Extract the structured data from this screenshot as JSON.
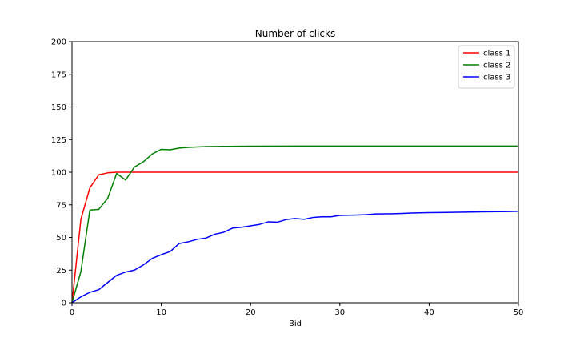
{
  "chart_data": {
    "type": "line",
    "title": "Number of clicks",
    "xlabel": "Bid",
    "ylabel": "",
    "xlim": [
      0,
      50
    ],
    "ylim": [
      0,
      200
    ],
    "xticks": [
      0,
      10,
      20,
      30,
      40,
      50
    ],
    "yticks": [
      0,
      25,
      50,
      75,
      100,
      125,
      150,
      175,
      200
    ],
    "grid": false,
    "legend_position": "top-right",
    "series": [
      {
        "name": "class 1",
        "color": "#ff0000",
        "points": [
          [
            0,
            0
          ],
          [
            1,
            64
          ],
          [
            2,
            88
          ],
          [
            3,
            98
          ],
          [
            4,
            99.5
          ],
          [
            5,
            100
          ],
          [
            6,
            100
          ],
          [
            8,
            100
          ],
          [
            10,
            100
          ],
          [
            15,
            100
          ],
          [
            20,
            100
          ],
          [
            25,
            100
          ],
          [
            30,
            100
          ],
          [
            35,
            100
          ],
          [
            40,
            100
          ],
          [
            45,
            100
          ],
          [
            50,
            100
          ]
        ]
      },
      {
        "name": "class 2",
        "color": "#008000",
        "points": [
          [
            0,
            0
          ],
          [
            1,
            24
          ],
          [
            2,
            71
          ],
          [
            3,
            71.5
          ],
          [
            4,
            80
          ],
          [
            5,
            99
          ],
          [
            6,
            94
          ],
          [
            7,
            104
          ],
          [
            8,
            108
          ],
          [
            9,
            114
          ],
          [
            10,
            117.5
          ],
          [
            11,
            117.2
          ],
          [
            12,
            118.5
          ],
          [
            13,
            119
          ],
          [
            14,
            119.3
          ],
          [
            15,
            119.6
          ],
          [
            17,
            119.8
          ],
          [
            20,
            119.9
          ],
          [
            25,
            120
          ],
          [
            30,
            120
          ],
          [
            35,
            120
          ],
          [
            40,
            120
          ],
          [
            45,
            120
          ],
          [
            50,
            120
          ]
        ]
      },
      {
        "name": "class 3",
        "color": "#0000ff",
        "points": [
          [
            0,
            0
          ],
          [
            1,
            4.5
          ],
          [
            2,
            8
          ],
          [
            3,
            10
          ],
          [
            4,
            15.5
          ],
          [
            5,
            21
          ],
          [
            6,
            23.5
          ],
          [
            7,
            25
          ],
          [
            8,
            29
          ],
          [
            9,
            34
          ],
          [
            10,
            36.8
          ],
          [
            11,
            39.2
          ],
          [
            12,
            45.3
          ],
          [
            13,
            46.6
          ],
          [
            14,
            48.5
          ],
          [
            15,
            49.5
          ],
          [
            16,
            52.5
          ],
          [
            17,
            54
          ],
          [
            18,
            57.2
          ],
          [
            19,
            57.8
          ],
          [
            20,
            58.9
          ],
          [
            21,
            60
          ],
          [
            22,
            62
          ],
          [
            23,
            61.7
          ],
          [
            24,
            63.7
          ],
          [
            25,
            64.5
          ],
          [
            26,
            63.9
          ],
          [
            27,
            65.3
          ],
          [
            28,
            65.8
          ],
          [
            29,
            65.8
          ],
          [
            30,
            66.9
          ],
          [
            32,
            67.2
          ],
          [
            33,
            67.5
          ],
          [
            34,
            68
          ],
          [
            36,
            68.2
          ],
          [
            37,
            68.4
          ],
          [
            38,
            68.7
          ],
          [
            40,
            69
          ],
          [
            42,
            69.2
          ],
          [
            44,
            69.4
          ],
          [
            46,
            69.6
          ],
          [
            48,
            69.8
          ],
          [
            50,
            70
          ]
        ]
      }
    ]
  }
}
